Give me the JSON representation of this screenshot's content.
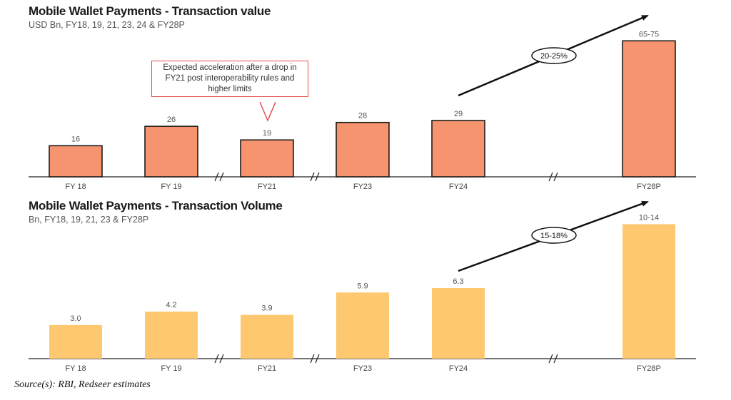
{
  "chart_data": [
    {
      "type": "bar",
      "title": "Mobile Wallet Payments - Transaction value",
      "subtitle": "USD Bn, FY18, 19, 21, 23, 24 & FY28P",
      "categories": [
        "FY 18",
        "FY 19",
        "FY21",
        "FY23",
        "FY24",
        "FY28P"
      ],
      "values": [
        16,
        26,
        19,
        28,
        29,
        70
      ],
      "value_labels": [
        "16",
        "26",
        "19",
        "28",
        "29",
        "65-75"
      ],
      "ylim": [
        0,
        80
      ],
      "bar_color": "#f5946f",
      "growth_label": "20-25%",
      "callout": "Expected acceleration after a drop in FY21 post interoperability rules and higher limits"
    },
    {
      "type": "bar",
      "title": "Mobile Wallet Payments - Transaction Volume",
      "subtitle": "Bn, FY18, 19, 21, 23 & FY28P",
      "categories": [
        "FY 18",
        "FY 19",
        "FY21",
        "FY23",
        "FY24",
        "FY28P"
      ],
      "values": [
        3.0,
        4.2,
        3.9,
        5.9,
        6.3,
        12
      ],
      "value_labels": [
        "3.0",
        "4.2",
        "3.9",
        "5.9",
        "6.3",
        "10-14"
      ],
      "ylim": [
        0,
        14
      ],
      "bar_color": "#fdc86f",
      "growth_label": "15-18%"
    }
  ],
  "source": "Source(s): RBI, Redseer estimates"
}
